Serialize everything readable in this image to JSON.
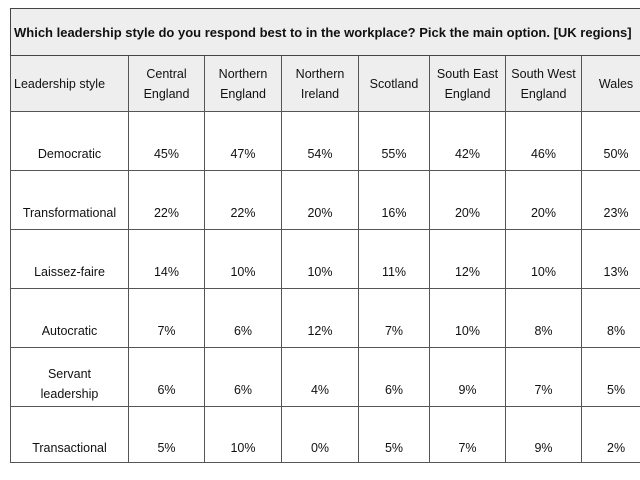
{
  "chart_data": {
    "type": "table",
    "title": "Which leadership style do you respond best to in the workplace? Pick the main option. [UK regions]",
    "row_header_label": "Leadership style",
    "columns": [
      "Central England",
      "Northern England",
      "Northern Ireland",
      "Scotland",
      "South East England",
      "South West England",
      "Wales"
    ],
    "column_lines": [
      [
        "Central",
        "England"
      ],
      [
        "Northern",
        "England"
      ],
      [
        "Northern",
        "Ireland"
      ],
      [
        "Scotland"
      ],
      [
        "South East",
        "England"
      ],
      [
        "South West",
        "England"
      ],
      [
        "Wales"
      ]
    ],
    "rows": [
      {
        "label": "Democratic",
        "values": [
          "45%",
          "47%",
          "54%",
          "55%",
          "42%",
          "46%",
          "50%"
        ]
      },
      {
        "label": "Transformational",
        "values": [
          "22%",
          "22%",
          "20%",
          "16%",
          "20%",
          "20%",
          "23%"
        ]
      },
      {
        "label": "Laissez-faire",
        "values": [
          "14%",
          "10%",
          "10%",
          "11%",
          "12%",
          "10%",
          "13%"
        ]
      },
      {
        "label": "Autocratic",
        "values": [
          "7%",
          "6%",
          "12%",
          "7%",
          "10%",
          "8%",
          "8%"
        ]
      },
      {
        "label": "Servant leadership",
        "label_lines": [
          "Servant",
          "leadership"
        ],
        "values": [
          "6%",
          "6%",
          "4%",
          "6%",
          "9%",
          "7%",
          "5%"
        ]
      },
      {
        "label": "Transactional",
        "values": [
          "5%",
          "10%",
          "0%",
          "5%",
          "7%",
          "9%",
          "2%"
        ]
      }
    ],
    "unit": "%"
  }
}
